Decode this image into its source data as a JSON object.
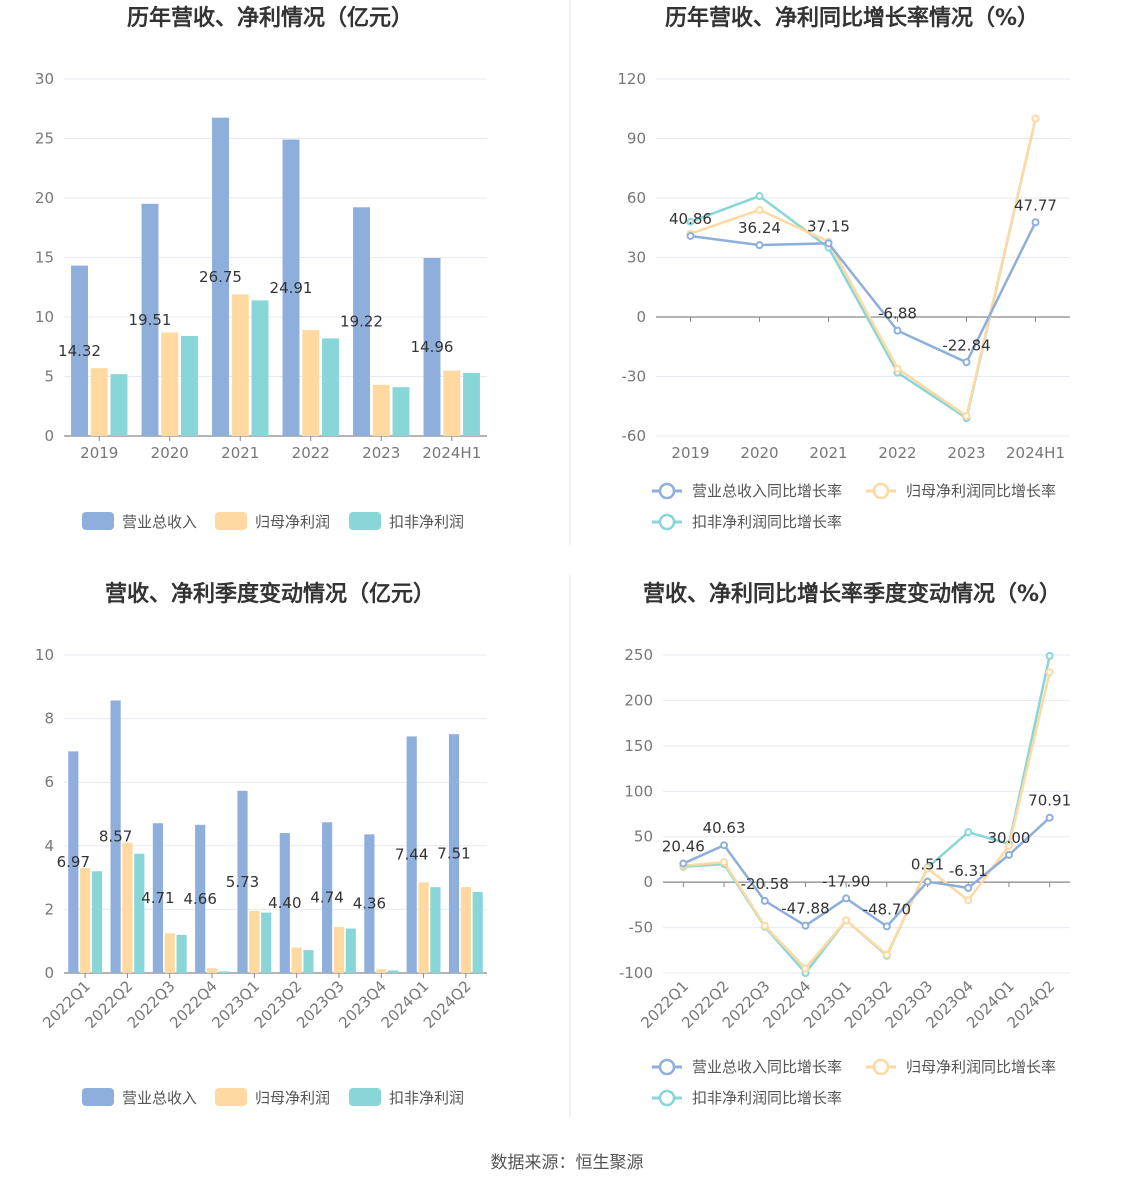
{
  "source": "数据来源：恒生聚源",
  "chart_data": [
    {
      "type": "bar",
      "title": "历年营收、净利情况（亿元）",
      "categories": [
        "2019",
        "2020",
        "2021",
        "2022",
        "2023",
        "2024H1"
      ],
      "ylim": [
        0,
        30
      ],
      "yticks": [
        "0",
        "5",
        "10",
        "15",
        "20",
        "25",
        "30"
      ],
      "legend_position": "bottom",
      "series": [
        {
          "name": "营业总收入",
          "color": "#8eaedb",
          "values": [
            14.32,
            19.51,
            26.75,
            24.91,
            19.22,
            14.96
          ],
          "labels": [
            "14.32",
            "19.51",
            "26.75",
            "24.91",
            "19.22",
            "14.96"
          ]
        },
        {
          "name": "归母净利润",
          "color": "#ffd9a0",
          "values": [
            5.7,
            8.7,
            11.9,
            8.9,
            4.3,
            5.5
          ]
        },
        {
          "name": "扣非净利润",
          "color": "#88d6d8",
          "values": [
            5.2,
            8.4,
            11.4,
            8.2,
            4.1,
            5.3
          ]
        }
      ]
    },
    {
      "type": "line",
      "title": "历年营收、净利同比增长率情况（%）",
      "categories": [
        "2019",
        "2020",
        "2021",
        "2022",
        "2023",
        "2024H1"
      ],
      "ylim": [
        -60,
        120
      ],
      "yticks": [
        "-60",
        "-30",
        "0",
        "30",
        "60",
        "90",
        "120"
      ],
      "legend_position": "bottom",
      "series": [
        {
          "name": "营业总收入同比增长率",
          "color": "#8eaedb",
          "values": [
            40.86,
            36.24,
            37.15,
            -6.88,
            -22.84,
            47.77
          ],
          "labels": [
            "40.86",
            "36.24",
            "37.15",
            "-6.88",
            "-22.84",
            "47.77"
          ]
        },
        {
          "name": "归母净利润同比增长率",
          "color": "#ffd9a0",
          "values": [
            42,
            54,
            38,
            -26,
            -50,
            100
          ]
        },
        {
          "name": "扣非净利润同比增长率",
          "color": "#88d6d8",
          "values": [
            48,
            61,
            35,
            -28,
            -51,
            100
          ]
        }
      ]
    },
    {
      "type": "bar",
      "title": "营收、净利季度变动情况（亿元）",
      "categories": [
        "2022Q1",
        "2022Q2",
        "2022Q3",
        "2022Q4",
        "2023Q1",
        "2023Q2",
        "2023Q3",
        "2023Q4",
        "2024Q1",
        "2024Q2"
      ],
      "ylim": [
        0,
        10
      ],
      "yticks": [
        "0",
        "2",
        "4",
        "6",
        "8",
        "10"
      ],
      "legend_position": "bottom",
      "series": [
        {
          "name": "营业总收入",
          "color": "#8eaedb",
          "values": [
            6.97,
            8.57,
            4.71,
            4.66,
            5.73,
            4.4,
            4.74,
            4.36,
            7.44,
            7.51
          ],
          "labels": [
            "6.97",
            "8.57",
            "4.71",
            "4.66",
            "5.73",
            "4.40",
            "4.74",
            "4.36",
            "7.44",
            "7.51"
          ]
        },
        {
          "name": "归母净利润",
          "color": "#ffd9a0",
          "values": [
            3.3,
            4.1,
            1.25,
            0.15,
            1.95,
            0.8,
            1.45,
            0.12,
            2.85,
            2.7
          ]
        },
        {
          "name": "扣非净利润",
          "color": "#88d6d8",
          "values": [
            3.2,
            3.75,
            1.2,
            0.05,
            1.9,
            0.72,
            1.4,
            0.08,
            2.7,
            2.55
          ]
        }
      ]
    },
    {
      "type": "line",
      "title": "营收、净利同比增长率季度变动情况（%）",
      "categories": [
        "2022Q1",
        "2022Q2",
        "2022Q3",
        "2022Q4",
        "2023Q1",
        "2023Q2",
        "2023Q3",
        "2023Q4",
        "2024Q1",
        "2024Q2"
      ],
      "ylim": [
        -100,
        250
      ],
      "yticks": [
        "-100",
        "-50",
        "0",
        "50",
        "100",
        "150",
        "200",
        "250"
      ],
      "legend_position": "bottom",
      "series": [
        {
          "name": "营业总收入同比增长率",
          "color": "#8eaedb",
          "values": [
            20.46,
            40.63,
            -20.58,
            -47.88,
            -17.9,
            -48.7,
            0.51,
            -6.31,
            30.0,
            70.91
          ],
          "labels": [
            "20.46",
            "40.63",
            "-20.58",
            "-47.88",
            "-17.90",
            "-48.70",
            "0.51",
            "-6.31",
            "30.00",
            "70.91"
          ]
        },
        {
          "name": "归母净利润同比增长率",
          "color": "#ffd9a0",
          "values": [
            18,
            22,
            -48,
            -95,
            -42,
            -80,
            15,
            -20,
            40,
            231
          ]
        },
        {
          "name": "扣非净利润同比增长率",
          "color": "#88d6d8",
          "values": [
            17,
            20,
            -49,
            -100,
            -42,
            -81,
            16,
            55,
            42,
            249
          ]
        }
      ]
    }
  ]
}
